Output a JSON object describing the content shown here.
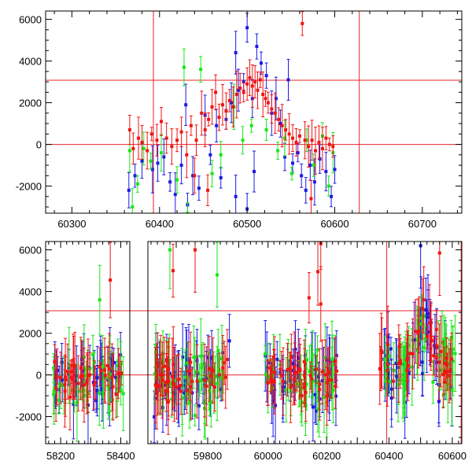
{
  "chart_data": [
    {
      "type": "scatter",
      "title": "",
      "xlabel": "",
      "ylabel": "",
      "xlim": [
        60270,
        60745
      ],
      "ylim": [
        -3300,
        6400
      ],
      "x_major_ticks": [
        60300,
        60400,
        60500,
        60600,
        60700
      ],
      "x_minor_step": 20,
      "y_major_ticks": [
        -2000,
        0,
        2000,
        4000,
        6000
      ],
      "y_minor_step": 500,
      "grid": false,
      "reference_lines": {
        "horizontal": [
          0,
          3080
        ],
        "vertical": [
          60393,
          60628
        ],
        "color": "#e8242b"
      },
      "series_colors": [
        "#1a1ae6",
        "#19e619",
        "#f01414"
      ],
      "series": [
        {
          "color": "#1a1ae6",
          "points": [
            [
              60365,
              -2200
            ],
            [
              60372,
              -1500
            ],
            [
              60380,
              -800
            ],
            [
              60392,
              -1200
            ],
            [
              60398,
              -900
            ],
            [
              60405,
              -600
            ],
            [
              60412,
              -1800
            ],
            [
              60418,
              -2400
            ],
            [
              60425,
              -1000
            ],
            [
              60430,
              1900
            ],
            [
              60438,
              -1500
            ],
            [
              60445,
              -2100
            ],
            [
              60452,
              1400
            ],
            [
              60458,
              -500
            ],
            [
              60465,
              900
            ],
            [
              60470,
              -1600
            ],
            [
              60476,
              1200
            ],
            [
              60482,
              2000
            ],
            [
              60487,
              4400
            ],
            [
              60490,
              2600
            ],
            [
              60496,
              3000
            ],
            [
              60500,
              5600
            ],
            [
              60506,
              2200
            ],
            [
              60511,
              4700
            ],
            [
              60516,
              3900
            ],
            [
              60522,
              3300
            ],
            [
              60528,
              1500
            ],
            [
              60533,
              2200
            ],
            [
              60538,
              1000
            ],
            [
              60543,
              -600
            ],
            [
              60547,
              3100
            ],
            [
              60552,
              -900
            ],
            [
              60558,
              -400
            ],
            [
              60562,
              -1500
            ],
            [
              60567,
              -2200
            ],
            [
              60572,
              -1000
            ],
            [
              60577,
              -1800
            ],
            [
              60583,
              -700
            ],
            [
              60590,
              -1300
            ],
            [
              60596,
              -2500
            ],
            [
              60600,
              -1200
            ],
            [
              60487,
              -2500
            ],
            [
              60508,
              -1300
            ],
            [
              60432,
              -2900
            ],
            [
              60500,
              -3100
            ]
          ]
        },
        {
          "color": "#19e619",
          "points": [
            [
              60366,
              -300
            ],
            [
              60369,
              -3000
            ],
            [
              60375,
              -1900
            ],
            [
              60382,
              -200
            ],
            [
              60390,
              -800
            ],
            [
              60402,
              -400
            ],
            [
              60420,
              -1700
            ],
            [
              60428,
              3700
            ],
            [
              60432,
              -3300
            ],
            [
              60447,
              3600
            ],
            [
              60460,
              -1400
            ],
            [
              60470,
              -500
            ],
            [
              60485,
              1800
            ],
            [
              60495,
              200
            ],
            [
              60505,
              900
            ],
            [
              60522,
              700
            ],
            [
              60535,
              -300
            ],
            [
              60543,
              300
            ],
            [
              60551,
              -1400
            ],
            [
              60568,
              200
            ],
            [
              60576,
              -1000
            ],
            [
              60586,
              400
            ],
            [
              60593,
              -2000
            ],
            [
              60598,
              -400
            ]
          ]
        },
        {
          "color": "#f01414",
          "points": [
            [
              60366,
              700
            ],
            [
              60370,
              -200
            ],
            [
              60376,
              300
            ],
            [
              60380,
              100
            ],
            [
              60386,
              -300
            ],
            [
              60391,
              500
            ],
            [
              60397,
              200
            ],
            [
              60402,
              1100
            ],
            [
              60408,
              300
            ],
            [
              60414,
              -100
            ],
            [
              60420,
              200
            ],
            [
              60425,
              600
            ],
            [
              60431,
              -500
            ],
            [
              60436,
              900
            ],
            [
              60442,
              200
            ],
            [
              60448,
              1500
            ],
            [
              60452,
              700
            ],
            [
              60456,
              1200
            ],
            [
              60460,
              1800
            ],
            [
              60464,
              2500
            ],
            [
              60468,
              1300
            ],
            [
              60472,
              1900
            ],
            [
              60476,
              1600
            ],
            [
              60480,
              2100
            ],
            [
              60484,
              1800
            ],
            [
              60488,
              2400
            ],
            [
              60492,
              2700
            ],
            [
              60496,
              2500
            ],
            [
              60500,
              2900
            ],
            [
              60503,
              3200
            ],
            [
              60506,
              2800
            ],
            [
              60509,
              3000
            ],
            [
              60512,
              2600
            ],
            [
              60515,
              3100
            ],
            [
              60518,
              2400
            ],
            [
              60521,
              2200
            ],
            [
              60524,
              2000
            ],
            [
              60528,
              1700
            ],
            [
              60532,
              1500
            ],
            [
              60536,
              1200
            ],
            [
              60540,
              900
            ],
            [
              60544,
              700
            ],
            [
              60548,
              500
            ],
            [
              60552,
              300
            ],
            [
              60556,
              100
            ],
            [
              60560,
              400
            ],
            [
              60563,
              5800
            ],
            [
              60566,
              200
            ],
            [
              60570,
              -100
            ],
            [
              60574,
              200
            ],
            [
              60578,
              -300
            ],
            [
              60582,
              100
            ],
            [
              60586,
              -200
            ],
            [
              60590,
              300
            ],
            [
              60594,
              0
            ],
            [
              60598,
              -100
            ],
            [
              60455,
              -2200
            ],
            [
              60440,
              -1500
            ],
            [
              60573,
              -2600
            ]
          ]
        }
      ]
    },
    {
      "type": "scatter",
      "title": "",
      "xlabel": "",
      "ylabel": "",
      "ylim": [
        -3300,
        6400
      ],
      "y_major_ticks": [
        -2000,
        0,
        2000,
        4000,
        6000
      ],
      "y_minor_step": 500,
      "broken_x_axis": true,
      "segments": [
        {
          "xlim": [
            58150,
            58430
          ],
          "x_major_ticks": [
            58200,
            58300,
            58400
          ],
          "x_major_tick_labels": [
            "58200",
            "",
            "58400"
          ]
        },
        {
          "xlim": [
            59610,
            59880
          ],
          "x_major_ticks": [
            59800
          ]
        },
        {
          "xlim": [
            59880,
            60245
          ],
          "x_major_ticks": [
            60000,
            60200
          ]
        },
        {
          "xlim": [
            60245,
            60630
          ],
          "x_major_ticks": [
            60400,
            60600
          ]
        }
      ],
      "reference_lines": {
        "horizontal": [
          0,
          3080
        ],
        "vertical": [
          60393,
          60628
        ],
        "color": "#e8242b"
      },
      "series_colors": [
        "#1a1ae6",
        "#19e619",
        "#f01414"
      ],
      "point_clouds": [
        {
          "x_range": [
            58175,
            58410
          ],
          "y_center": -200,
          "spread": 900,
          "count": 40
        },
        {
          "x_range": [
            59630,
            59870
          ],
          "y_center": -100,
          "spread": 1100,
          "count": 45
        },
        {
          "x_range": [
            59990,
            60235
          ],
          "y_center": -100,
          "spread": 1100,
          "count": 45
        },
        {
          "x_range": [
            60370,
            60610
          ],
          "y_center": 300,
          "spread": 1200,
          "count": 45
        }
      ],
      "highlights": [
        [
          58365,
          4550,
          "#f01414"
        ],
        [
          58330,
          3600,
          "#19e619"
        ],
        [
          59680,
          6000,
          "#19e619"
        ],
        [
          59690,
          5000,
          "#f01414"
        ],
        [
          59760,
          6000,
          "#f01414"
        ],
        [
          59830,
          4800,
          "#19e619"
        ],
        [
          60170,
          4950,
          "#f01414"
        ],
        [
          60180,
          6300,
          "#f01414"
        ],
        [
          60560,
          5850,
          "#f01414"
        ],
        [
          60510,
          3600,
          "#f01414"
        ],
        [
          60500,
          6200,
          "#1a1ae6"
        ],
        [
          60140,
          3700,
          "#f01414"
        ],
        [
          60180,
          3400,
          "#f01414"
        ]
      ]
    }
  ]
}
